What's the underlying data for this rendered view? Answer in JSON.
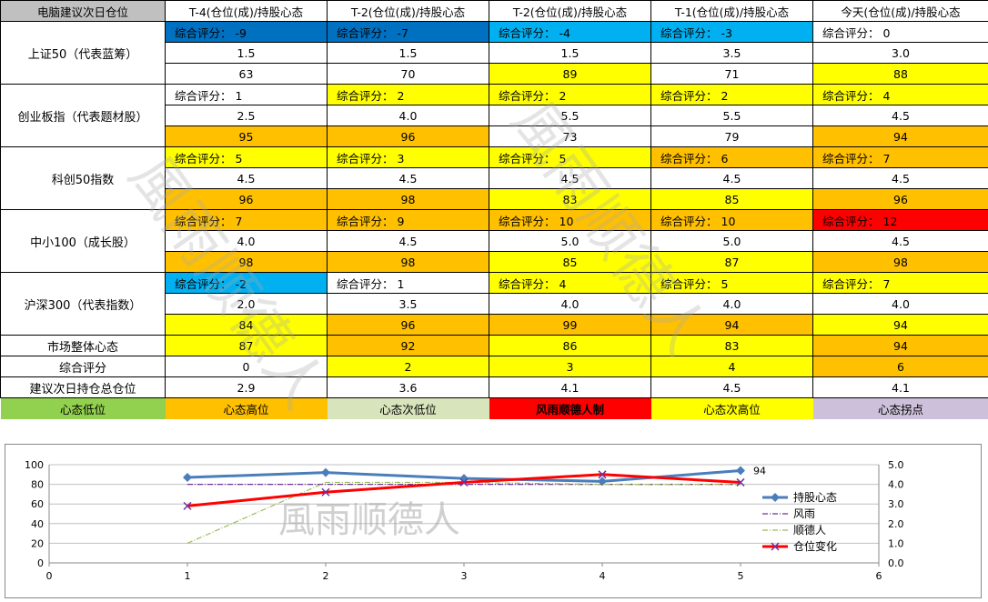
{
  "header": [
    "电脑建议次日仓位",
    "T-4(仓位(成)/持股心态",
    "T-2(仓位(成)/持股心态",
    "T-2(仓位(成)/持股心态",
    "T-1(仓位(成)/持股心态",
    "今天(仓位(成)/持股心态"
  ],
  "score_prefix": "综合评分：",
  "groups": [
    {
      "label": "上证50（代表蓝筹）",
      "scores": [
        "-9",
        "-7",
        "-4",
        "-3",
        "0"
      ],
      "score_colors": [
        "blue",
        "blue",
        "lblue",
        "lblue",
        "white"
      ],
      "positions": [
        "1.5",
        "1.5",
        "1.5",
        "3.5",
        "3.0"
      ],
      "position_colors": [
        "white",
        "white",
        "white",
        "white",
        "white"
      ],
      "moods": [
        "63",
        "70",
        "89",
        "71",
        "88"
      ],
      "mood_colors": [
        "white",
        "white",
        "yellow",
        "white",
        "yellow"
      ]
    },
    {
      "label": "创业板指（代表题材股）",
      "scores": [
        "1",
        "2",
        "2",
        "2",
        "4"
      ],
      "score_colors": [
        "white",
        "yellow",
        "yellow",
        "yellow",
        "yellow"
      ],
      "positions": [
        "2.5",
        "4.0",
        "5.5",
        "5.5",
        "4.5"
      ],
      "position_colors": [
        "white",
        "white",
        "white",
        "white",
        "white"
      ],
      "moods": [
        "95",
        "96",
        "73",
        "79",
        "94"
      ],
      "mood_colors": [
        "orange",
        "orange",
        "white",
        "white",
        "orange"
      ]
    },
    {
      "label": "科创50指数",
      "scores": [
        "5",
        "3",
        "5",
        "6",
        "7"
      ],
      "score_colors": [
        "yellow",
        "yellow",
        "yellow",
        "orange",
        "orange"
      ],
      "positions": [
        "4.5",
        "4.5",
        "4.5",
        "4.5",
        "4.5"
      ],
      "position_colors": [
        "white",
        "white",
        "white",
        "white",
        "white"
      ],
      "moods": [
        "96",
        "98",
        "83",
        "85",
        "96"
      ],
      "mood_colors": [
        "orange",
        "orange",
        "yellow",
        "yellow",
        "orange"
      ]
    },
    {
      "label": "中小100（成长股）",
      "scores": [
        "7",
        "9",
        "10",
        "10",
        "12"
      ],
      "score_colors": [
        "orange",
        "orange",
        "orange",
        "orange",
        "red"
      ],
      "positions": [
        "4.0",
        "4.5",
        "5.0",
        "5.0",
        "4.5"
      ],
      "position_colors": [
        "white",
        "white",
        "white",
        "white",
        "white"
      ],
      "moods": [
        "98",
        "98",
        "85",
        "87",
        "98"
      ],
      "mood_colors": [
        "orange",
        "orange",
        "yellow",
        "yellow",
        "orange"
      ]
    },
    {
      "label": "沪深300（代表指数）",
      "scores": [
        "-2",
        "1",
        "4",
        "5",
        "7"
      ],
      "score_colors": [
        "lblue",
        "white",
        "yellow",
        "yellow",
        "yellow"
      ],
      "positions": [
        "2.0",
        "3.5",
        "4.0",
        "4.0",
        "4.0"
      ],
      "position_colors": [
        "white",
        "white",
        "white",
        "white",
        "white"
      ],
      "moods": [
        "84",
        "96",
        "99",
        "94",
        "94"
      ],
      "mood_colors": [
        "yellow",
        "orange",
        "orange",
        "orange",
        "yellow"
      ]
    }
  ],
  "summary_rows": [
    {
      "label": "市场整体心态",
      "values": [
        "87",
        "92",
        "86",
        "83",
        "94"
      ],
      "colors": [
        "yellow",
        "orange",
        "yellow",
        "yellow",
        "orange"
      ]
    },
    {
      "label": "综合评分",
      "values": [
        "0",
        "2",
        "3",
        "4",
        "6"
      ],
      "colors": [
        "white",
        "yellow",
        "yellow",
        "yellow",
        "orange"
      ]
    },
    {
      "label": "建议次日持仓总仓位",
      "values": [
        "2.9",
        "3.6",
        "4.1",
        "4.5",
        "4.1"
      ],
      "colors": [
        "white",
        "white",
        "white",
        "white",
        "white"
      ]
    }
  ],
  "legend_row": [
    {
      "label": "心态低位",
      "color": "#92d050"
    },
    {
      "label": "心态高位",
      "color": "#ffc000"
    },
    {
      "label": "心态次低位",
      "color": "#d8e4bc"
    },
    {
      "label": "风雨顺德人制",
      "color": "#ff0000"
    },
    {
      "label": "心态次高位",
      "color": "#ffff00"
    },
    {
      "label": "心态拐点",
      "color": "#ccc0da"
    }
  ],
  "watermark": "風雨顺德人",
  "chart_data": {
    "type": "line",
    "x": [
      1,
      2,
      3,
      4,
      5
    ],
    "xlim": [
      0,
      6
    ],
    "xticks": [
      "0",
      "1",
      "2",
      "3",
      "4",
      "5",
      "6"
    ],
    "y_left_lim": [
      0,
      100
    ],
    "y_left_ticks": [
      "0",
      "20",
      "40",
      "60",
      "80",
      "100"
    ],
    "y_right_lim": [
      0,
      5
    ],
    "y_right_ticks": [
      "0.0",
      "1.0",
      "2.0",
      "3.0",
      "4.0",
      "5.0"
    ],
    "grid": "horizontal",
    "legend_position": "right",
    "data_label": "94",
    "series": [
      {
        "name": "持股心态",
        "axis": "left",
        "values": [
          87,
          92,
          86,
          83,
          94
        ],
        "color": "#4a7ebb",
        "marker": "diamond"
      },
      {
        "name": "风雨",
        "axis": "right",
        "values": [
          4.0,
          4.0,
          4.0,
          4.0,
          4.0
        ],
        "color": "#7030a0",
        "style": "dashdot"
      },
      {
        "name": "顺德人",
        "axis": "right",
        "values": [
          1.0,
          4.1,
          4.1,
          4.0,
          4.0
        ],
        "color": "#9bbb59",
        "style": "dashdot"
      },
      {
        "name": "仓位变化",
        "axis": "right",
        "values": [
          2.9,
          3.6,
          4.1,
          4.5,
          4.1
        ],
        "color": "#ff0000",
        "marker": "x"
      }
    ]
  }
}
